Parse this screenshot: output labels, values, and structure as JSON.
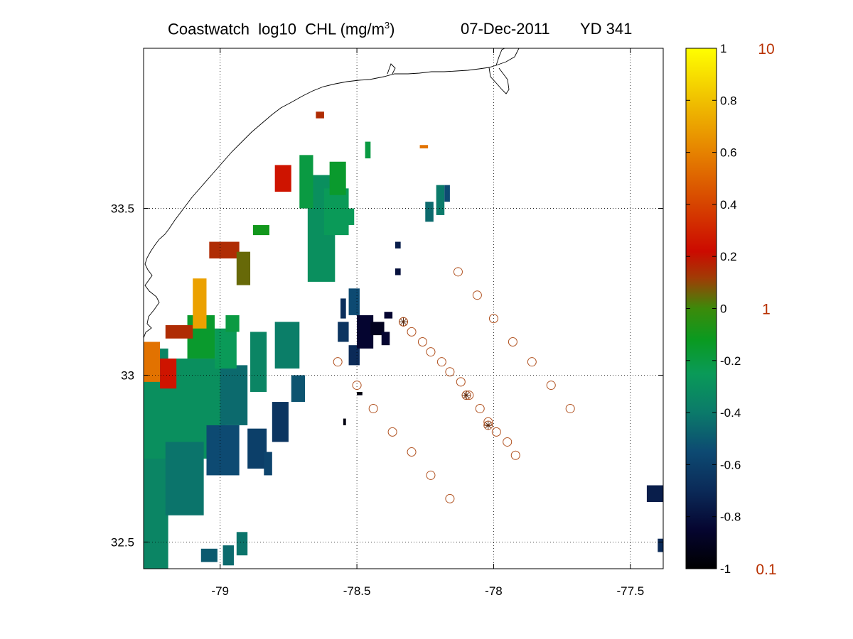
{
  "title": {
    "dataset": "Coastwatch",
    "variable": "log10",
    "quantity": "CHL (mg/m",
    "unit_exponent": "3",
    "unit_close": ")",
    "date": "07-Dec-2011",
    "yearday": "YD 341"
  },
  "map": {
    "xlim": [
      -79.28,
      -77.38
    ],
    "ylim": [
      32.42,
      33.98
    ],
    "x_ticks": [
      "-79",
      "-78.5",
      "-78",
      "-77.5"
    ],
    "x_tick_values": [
      -79,
      -78.5,
      -78,
      -77.5
    ],
    "y_ticks": [
      "33.5",
      "33",
      "32.5"
    ],
    "y_tick_values": [
      33.5,
      33.0,
      32.5
    ],
    "grid": "dotted",
    "coastline_color": "#000000",
    "station_marker_color": "#b0501e",
    "stations": [
      [
        -78.13,
        33.31
      ],
      [
        -78.06,
        33.24
      ],
      [
        -78.0,
        33.17
      ],
      [
        -77.93,
        33.1
      ],
      [
        -77.86,
        33.04
      ],
      [
        -77.79,
        32.97
      ],
      [
        -77.72,
        32.9
      ],
      [
        -78.33,
        33.16
      ],
      [
        -78.3,
        33.13
      ],
      [
        -78.26,
        33.1
      ],
      [
        -78.23,
        33.07
      ],
      [
        -78.19,
        33.04
      ],
      [
        -78.16,
        33.01
      ],
      [
        -78.12,
        32.98
      ],
      [
        -78.09,
        32.94
      ],
      [
        -78.05,
        32.9
      ],
      [
        -78.02,
        32.86
      ],
      [
        -77.99,
        32.83
      ],
      [
        -77.95,
        32.8
      ],
      [
        -77.92,
        32.76
      ],
      [
        -78.57,
        33.04
      ],
      [
        -78.5,
        32.97
      ],
      [
        -78.44,
        32.9
      ],
      [
        -78.37,
        32.83
      ],
      [
        -78.3,
        32.77
      ],
      [
        -78.23,
        32.7
      ],
      [
        -78.16,
        32.63
      ]
    ],
    "cast_markers": [
      [
        -78.33,
        33.16
      ],
      [
        -78.1,
        32.94
      ],
      [
        -78.02,
        32.85
      ]
    ],
    "chl_patches": [
      {
        "lon": -79.28,
        "lat": 32.42,
        "w": 0.09,
        "h": 0.66,
        "val": -0.35
      },
      {
        "lon": -79.28,
        "lat": 32.75,
        "w": 0.3,
        "h": 0.3,
        "val": -0.3
      },
      {
        "lon": -79.2,
        "lat": 32.58,
        "w": 0.14,
        "h": 0.22,
        "val": -0.42
      },
      {
        "lon": -79.05,
        "lat": 32.7,
        "w": 0.12,
        "h": 0.15,
        "val": -0.55
      },
      {
        "lon": -79.0,
        "lat": 32.85,
        "w": 0.1,
        "h": 0.18,
        "val": -0.45
      },
      {
        "lon": -79.28,
        "lat": 32.98,
        "w": 0.06,
        "h": 0.12,
        "val": 0.55
      },
      {
        "lon": -79.22,
        "lat": 32.96,
        "w": 0.06,
        "h": 0.09,
        "val": 0.25
      },
      {
        "lon": -79.12,
        "lat": 33.05,
        "w": 0.1,
        "h": 0.13,
        "val": -0.15
      },
      {
        "lon": -79.02,
        "lat": 33.02,
        "w": 0.08,
        "h": 0.12,
        "val": -0.25
      },
      {
        "lon": -79.2,
        "lat": 33.11,
        "w": 0.1,
        "h": 0.04,
        "val": 0.15
      },
      {
        "lon": -79.1,
        "lat": 33.14,
        "w": 0.05,
        "h": 0.15,
        "val": 0.7
      },
      {
        "lon": -78.98,
        "lat": 33.13,
        "w": 0.05,
        "h": 0.05,
        "val": -0.2
      },
      {
        "lon": -78.89,
        "lat": 32.95,
        "w": 0.06,
        "h": 0.18,
        "val": -0.35
      },
      {
        "lon": -78.8,
        "lat": 33.02,
        "w": 0.09,
        "h": 0.14,
        "val": -0.38
      },
      {
        "lon": -78.74,
        "lat": 32.92,
        "w": 0.05,
        "h": 0.08,
        "val": -0.52
      },
      {
        "lon": -78.9,
        "lat": 32.72,
        "w": 0.07,
        "h": 0.12,
        "val": -0.6
      },
      {
        "lon": -78.81,
        "lat": 32.8,
        "w": 0.06,
        "h": 0.12,
        "val": -0.65
      },
      {
        "lon": -78.84,
        "lat": 32.7,
        "w": 0.03,
        "h": 0.07,
        "val": -0.58
      },
      {
        "lon": -79.07,
        "lat": 32.44,
        "w": 0.06,
        "h": 0.04,
        "val": -0.5
      },
      {
        "lon": -78.99,
        "lat": 32.43,
        "w": 0.04,
        "h": 0.06,
        "val": -0.45
      },
      {
        "lon": -78.94,
        "lat": 32.46,
        "w": 0.04,
        "h": 0.07,
        "val": -0.42
      },
      {
        "lon": -79.04,
        "lat": 33.35,
        "w": 0.11,
        "h": 0.05,
        "val": 0.15
      },
      {
        "lon": -78.94,
        "lat": 33.27,
        "w": 0.05,
        "h": 0.1,
        "val": 0.05
      },
      {
        "lon": -78.88,
        "lat": 33.42,
        "w": 0.06,
        "h": 0.03,
        "val": -0.1
      },
      {
        "lon": -78.8,
        "lat": 33.55,
        "w": 0.06,
        "h": 0.08,
        "val": 0.25
      },
      {
        "lon": -78.68,
        "lat": 33.28,
        "w": 0.1,
        "h": 0.32,
        "val": -0.3
      },
      {
        "lon": -78.62,
        "lat": 33.42,
        "w": 0.09,
        "h": 0.14,
        "val": -0.25
      },
      {
        "lon": -78.71,
        "lat": 33.5,
        "w": 0.05,
        "h": 0.16,
        "val": -0.2
      },
      {
        "lon": -78.6,
        "lat": 33.54,
        "w": 0.06,
        "h": 0.1,
        "val": -0.15
      },
      {
        "lon": -78.54,
        "lat": 33.45,
        "w": 0.03,
        "h": 0.05,
        "val": -0.25
      },
      {
        "lon": -78.47,
        "lat": 33.65,
        "w": 0.02,
        "h": 0.05,
        "val": -0.2
      },
      {
        "lon": -78.65,
        "lat": 33.77,
        "w": 0.03,
        "h": 0.02,
        "val": 0.15
      },
      {
        "lon": -78.27,
        "lat": 33.68,
        "w": 0.03,
        "h": 0.01,
        "val": 0.55
      },
      {
        "lon": -78.57,
        "lat": 33.1,
        "w": 0.04,
        "h": 0.06,
        "val": -0.65
      },
      {
        "lon": -78.53,
        "lat": 33.03,
        "w": 0.04,
        "h": 0.06,
        "val": -0.7
      },
      {
        "lon": -78.53,
        "lat": 33.18,
        "w": 0.04,
        "h": 0.08,
        "val": -0.55
      },
      {
        "lon": -78.56,
        "lat": 33.17,
        "w": 0.02,
        "h": 0.06,
        "val": -0.68
      },
      {
        "lon": -78.5,
        "lat": 33.08,
        "w": 0.06,
        "h": 0.1,
        "val": -0.85
      },
      {
        "lon": -78.45,
        "lat": 33.12,
        "w": 0.05,
        "h": 0.04,
        "val": -0.9
      },
      {
        "lon": -78.41,
        "lat": 33.09,
        "w": 0.03,
        "h": 0.04,
        "val": -0.85
      },
      {
        "lon": -78.4,
        "lat": 33.17,
        "w": 0.03,
        "h": 0.02,
        "val": -0.85
      },
      {
        "lon": -78.36,
        "lat": 33.3,
        "w": 0.02,
        "h": 0.02,
        "val": -0.8
      },
      {
        "lon": -78.36,
        "lat": 33.38,
        "w": 0.02,
        "h": 0.02,
        "val": -0.75
      },
      {
        "lon": -78.25,
        "lat": 33.46,
        "w": 0.03,
        "h": 0.06,
        "val": -0.45
      },
      {
        "lon": -78.21,
        "lat": 33.48,
        "w": 0.03,
        "h": 0.09,
        "val": -0.4
      },
      {
        "lon": -78.18,
        "lat": 33.52,
        "w": 0.02,
        "h": 0.05,
        "val": -0.55
      },
      {
        "lon": -78.55,
        "lat": 32.85,
        "w": 0.01,
        "h": 0.02,
        "val": -0.95
      },
      {
        "lon": -78.5,
        "lat": 32.94,
        "w": 0.02,
        "h": 0.01,
        "val": -0.95
      },
      {
        "lon": -77.44,
        "lat": 32.62,
        "w": 0.06,
        "h": 0.05,
        "val": -0.75
      },
      {
        "lon": -77.4,
        "lat": 32.47,
        "w": 0.02,
        "h": 0.04,
        "val": -0.7
      }
    ]
  },
  "colorbar": {
    "ticks": [
      "1",
      "0.8",
      "0.6",
      "0.4",
      "0.2",
      "0",
      "-0.2",
      "-0.4",
      "-0.6",
      "-0.8",
      "-1"
    ],
    "tick_values": [
      1,
      0.8,
      0.6,
      0.4,
      0.2,
      0,
      -0.2,
      -0.4,
      -0.6,
      -0.8,
      -1
    ],
    "range": [
      -1,
      1
    ],
    "conc_labels": [
      "10",
      "1",
      "0.1"
    ],
    "conc_label_color": "#b83000",
    "colors": [
      [
        -1.0,
        "#000000"
      ],
      [
        -0.85,
        "#050530"
      ],
      [
        -0.7,
        "#0b2a58"
      ],
      [
        -0.55,
        "#0d4a72"
      ],
      [
        -0.4,
        "#0b7a6a"
      ],
      [
        -0.25,
        "#0a9a58"
      ],
      [
        -0.12,
        "#0a9a20"
      ],
      [
        0.0,
        "#3c8a0a"
      ],
      [
        0.12,
        "#a23a05"
      ],
      [
        0.22,
        "#cc0a00"
      ],
      [
        0.42,
        "#d84a00"
      ],
      [
        0.6,
        "#e68200"
      ],
      [
        0.8,
        "#f0c000"
      ],
      [
        1.0,
        "#ffff00"
      ]
    ]
  }
}
